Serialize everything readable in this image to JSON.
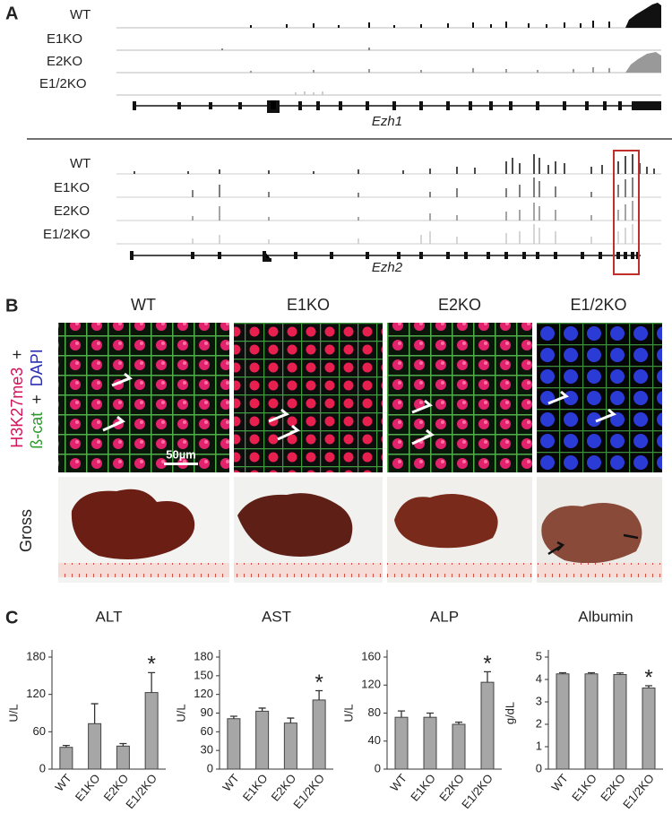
{
  "panel_labels": [
    "A",
    "B",
    "C"
  ],
  "panel_a": {
    "tracks_ezh1": [
      "WT",
      "E1KO",
      "E2KO",
      "E1/2KO"
    ],
    "gene_ezh1": "Ezh1",
    "tracks_ezh2": [
      "WT",
      "E1KO",
      "E2KO",
      "E1/2KO"
    ],
    "gene_ezh2": "Ezh2"
  },
  "panel_b": {
    "columns": [
      "WT",
      "E1KO",
      "E2KO",
      "E1/2KO"
    ],
    "stain_label": [
      "H3K27me3",
      "+",
      "ß-cat",
      "+",
      "DAPI"
    ],
    "scale_bar": "50µm",
    "row_label_gross": "Gross"
  },
  "chart_data": [
    {
      "type": "bar",
      "title": "ALT",
      "y_label": "U/L",
      "categories": [
        "WT",
        "E1KO",
        "E2KO",
        "E1/2KO"
      ],
      "values": [
        35,
        73,
        37,
        123
      ],
      "errors": [
        3,
        32,
        4,
        32
      ],
      "significance": [
        null,
        null,
        null,
        "*"
      ],
      "color": "#a6a6a6",
      "ylim": [
        0,
        180
      ],
      "yticks": [
        0,
        60,
        120,
        180
      ]
    },
    {
      "type": "bar",
      "title": "AST",
      "y_label": "U/L",
      "categories": [
        "WT",
        "E1KO",
        "E2KO",
        "E1/2KO"
      ],
      "values": [
        81,
        93,
        74,
        111
      ],
      "errors": [
        4,
        5,
        8,
        15
      ],
      "significance": [
        null,
        null,
        null,
        "*"
      ],
      "color": "#a6a6a6",
      "ylim": [
        0,
        180
      ],
      "yticks": [
        0,
        30,
        60,
        90,
        120,
        150,
        180
      ]
    },
    {
      "type": "bar",
      "title": "ALP",
      "y_label": "U/L",
      "categories": [
        "WT",
        "E1KO",
        "E2KO",
        "E1/2KO"
      ],
      "values": [
        74,
        74,
        64,
        124
      ],
      "errors": [
        9,
        6,
        3,
        15
      ],
      "significance": [
        null,
        null,
        null,
        "*"
      ],
      "color": "#a6a6a6",
      "ylim": [
        0,
        160
      ],
      "yticks": [
        0,
        40,
        80,
        120,
        160
      ]
    },
    {
      "type": "bar",
      "title": "Albumin",
      "y_label": "g/dL",
      "categories": [
        "WT",
        "E1KO",
        "E2KO",
        "E1/2KO"
      ],
      "values": [
        4.25,
        4.25,
        4.22,
        3.62
      ],
      "errors": [
        0.05,
        0.05,
        0.07,
        0.1
      ],
      "significance": [
        null,
        null,
        null,
        "*"
      ],
      "color": "#a6a6a6",
      "ylim": [
        0,
        5
      ],
      "yticks": [
        0,
        1,
        2,
        3,
        4,
        5
      ]
    }
  ]
}
